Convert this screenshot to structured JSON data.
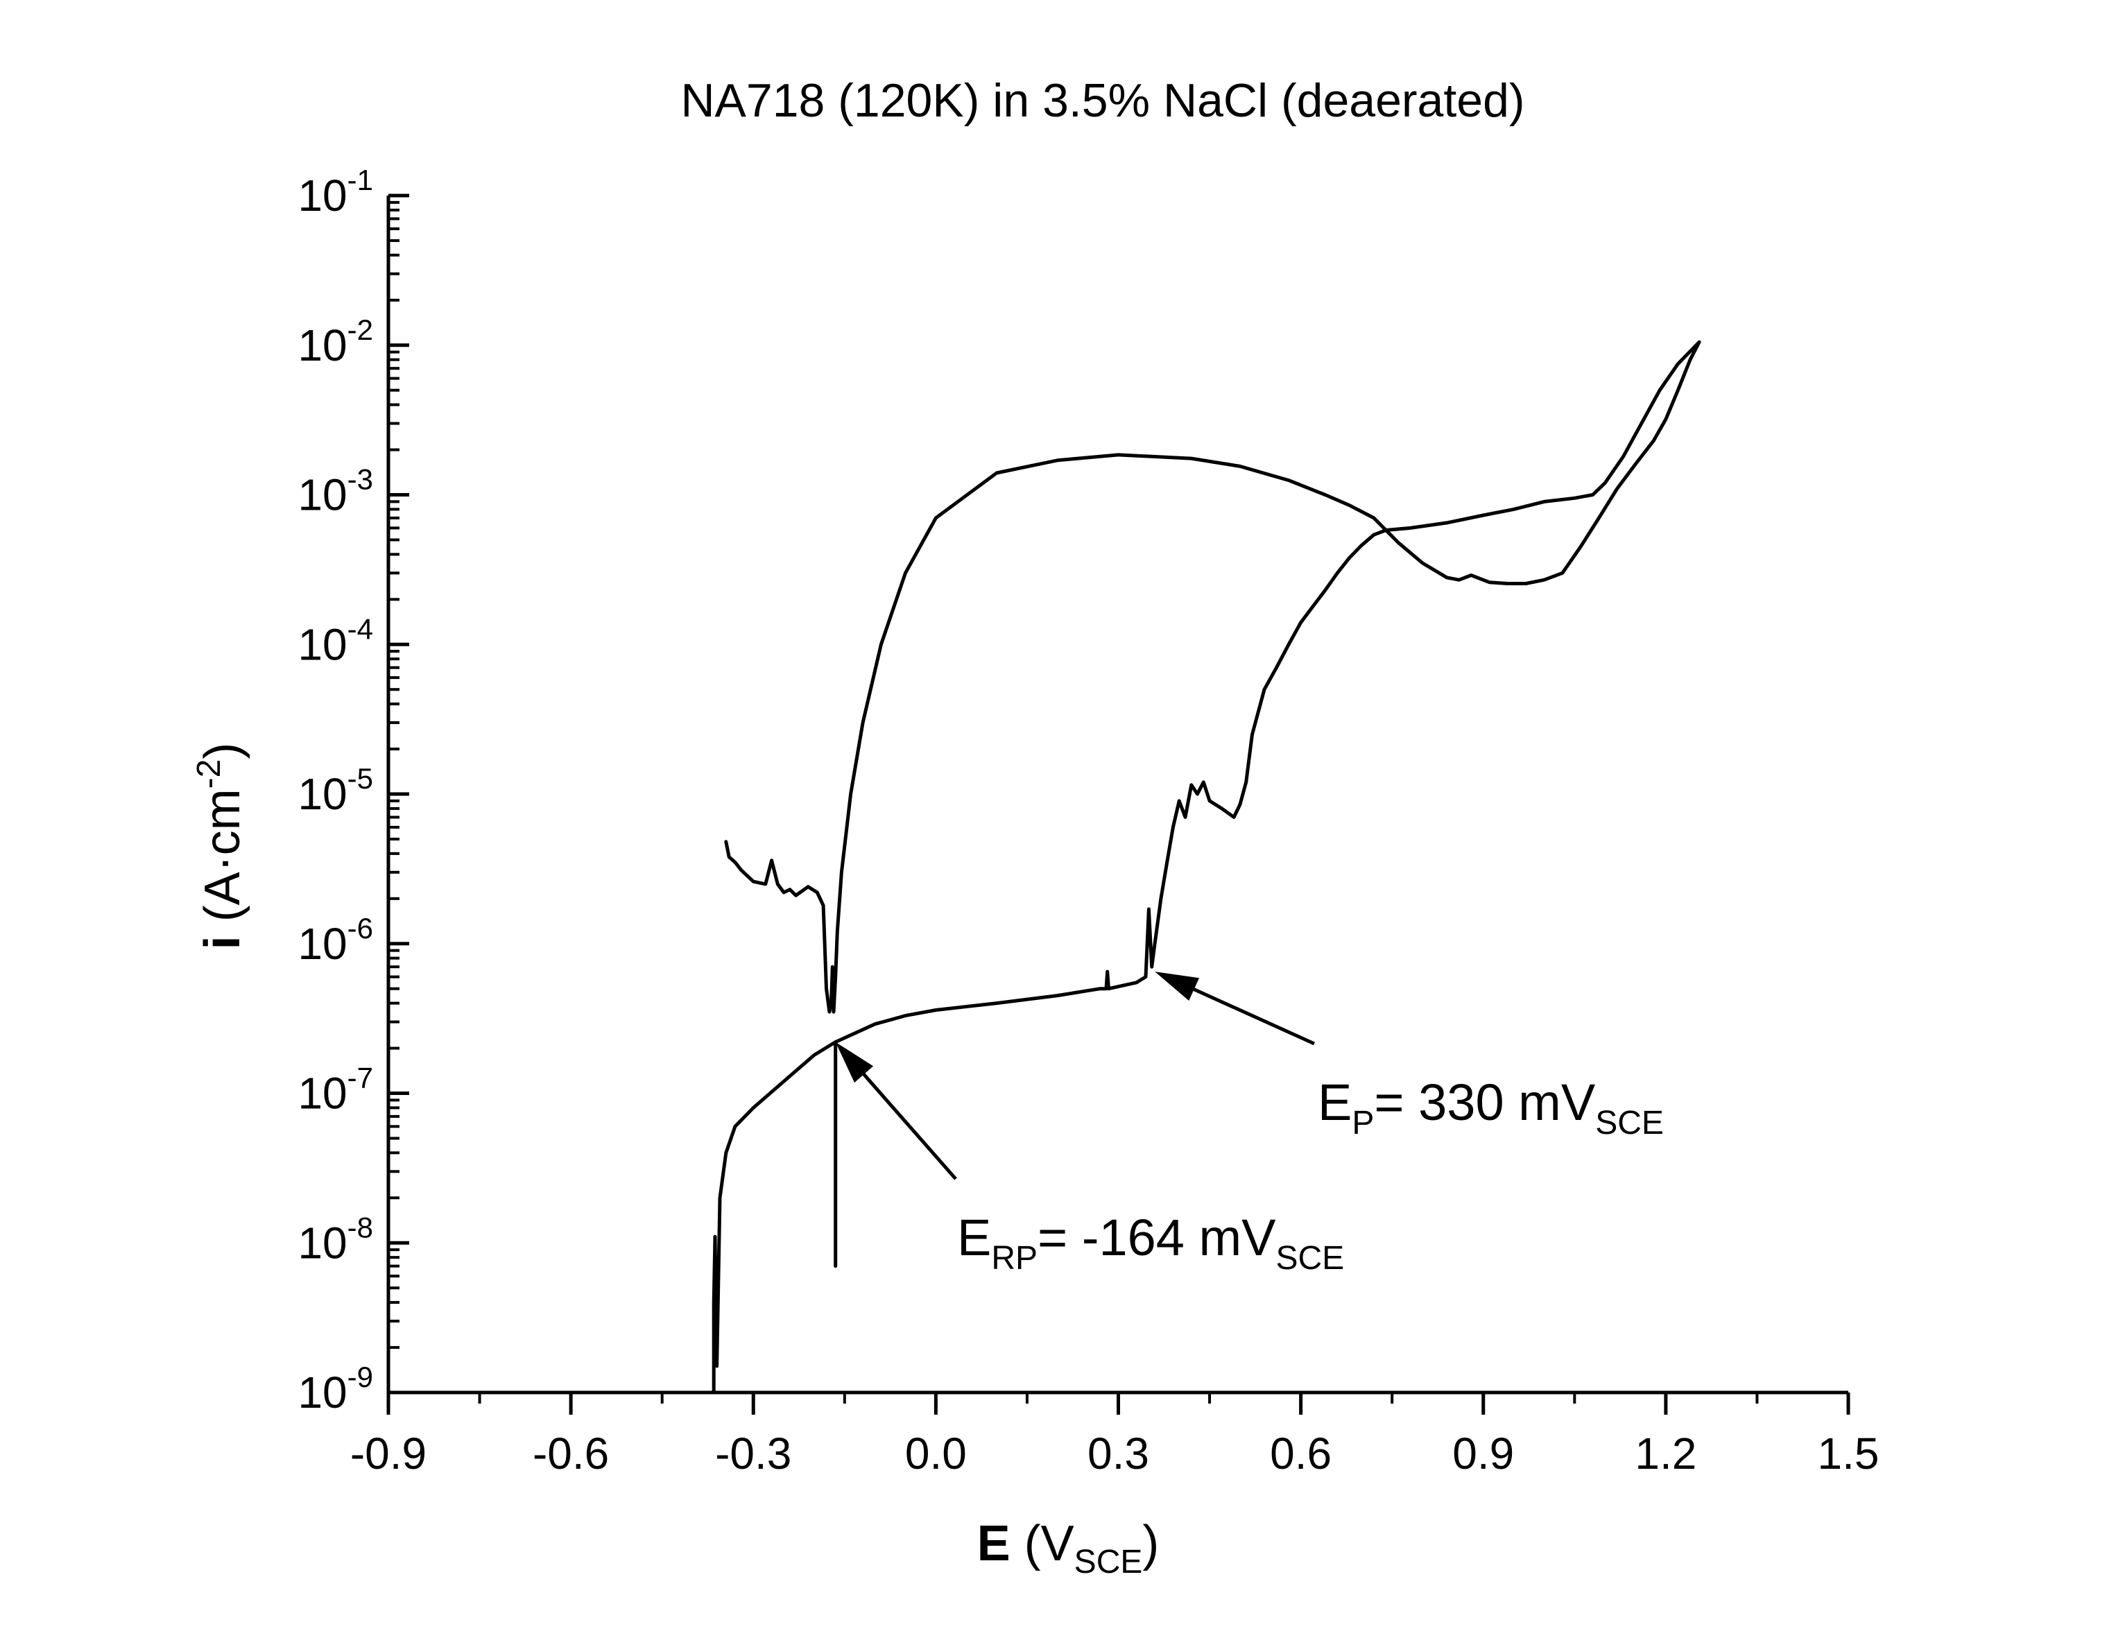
{
  "chart_data": {
    "type": "line",
    "title": "NA718 (120K) in 3.5% NaCl (deaerated)",
    "xlabel": {
      "bold": "E",
      "text": " (V",
      "sub": "SCE",
      "close": ")"
    },
    "ylabel": {
      "bold": "i",
      "text": " (A·cm",
      "sup": "-2",
      "close": ")"
    },
    "xlim": [
      -0.9,
      1.5
    ],
    "ylim_exponent": [
      -9,
      -1
    ],
    "y_scale": "log",
    "x_ticks": [
      -0.9,
      -0.6,
      -0.3,
      0.0,
      0.3,
      0.6,
      0.9,
      1.2,
      1.5
    ],
    "x_tick_labels": [
      "-0.9",
      "-0.6",
      "-0.3",
      "0.0",
      "0.3",
      "0.6",
      "0.9",
      "1.2",
      "1.5"
    ],
    "y_tick_labels": [
      {
        "base": "10",
        "exp": "-9"
      },
      {
        "base": "10",
        "exp": "-8"
      },
      {
        "base": "10",
        "exp": "-7"
      },
      {
        "base": "10",
        "exp": "-6"
      },
      {
        "base": "10",
        "exp": "-5"
      },
      {
        "base": "10",
        "exp": "-4"
      },
      {
        "base": "10",
        "exp": "-3"
      },
      {
        "base": "10",
        "exp": "-2"
      },
      {
        "base": "10",
        "exp": "-1"
      }
    ],
    "series": [
      {
        "segment": "forward",
        "points": [
          [
            -0.365,
            1e-09
          ],
          [
            -0.365,
            4e-09
          ],
          [
            -0.363,
            1.1e-08
          ],
          [
            -0.36,
            1.5e-09
          ],
          [
            -0.355,
            2e-08
          ],
          [
            -0.345,
            4e-08
          ],
          [
            -0.33,
            6e-08
          ],
          [
            -0.3,
            8e-08
          ],
          [
            -0.25,
            1.2e-07
          ],
          [
            -0.2,
            1.8e-07
          ],
          [
            -0.165,
            2.2e-07
          ],
          [
            -0.1,
            2.9e-07
          ],
          [
            -0.05,
            3.3e-07
          ],
          [
            0.0,
            3.6e-07
          ],
          [
            0.1,
            4e-07
          ],
          [
            0.2,
            4.5e-07
          ],
          [
            0.27,
            5e-07
          ],
          [
            0.28,
            5e-07
          ],
          [
            0.282,
            6.5e-07
          ],
          [
            0.284,
            5e-07
          ],
          [
            0.33,
            5.5e-07
          ],
          [
            0.345,
            6e-07
          ],
          [
            0.35,
            1.7e-06
          ],
          [
            0.355,
            7e-07
          ],
          [
            0.36,
            1e-06
          ],
          [
            0.37,
            2e-06
          ],
          [
            0.38,
            3.5e-06
          ],
          [
            0.39,
            6e-06
          ],
          [
            0.4,
            9e-06
          ],
          [
            0.41,
            7e-06
          ],
          [
            0.42,
            1.15e-05
          ],
          [
            0.43,
            1e-05
          ],
          [
            0.44,
            1.2e-05
          ],
          [
            0.45,
            9e-06
          ],
          [
            0.47,
            8e-06
          ],
          [
            0.49,
            7e-06
          ],
          [
            0.5,
            8.5e-06
          ],
          [
            0.51,
            1.2e-05
          ],
          [
            0.52,
            2.5e-05
          ],
          [
            0.54,
            5e-05
          ],
          [
            0.56,
            7e-05
          ],
          [
            0.58,
            0.0001
          ],
          [
            0.6,
            0.00014
          ],
          [
            0.62,
            0.00018
          ],
          [
            0.64,
            0.00023
          ],
          [
            0.66,
            0.0003
          ],
          [
            0.68,
            0.00038
          ],
          [
            0.7,
            0.00046
          ],
          [
            0.72,
            0.00054
          ],
          [
            0.74,
            0.00058
          ],
          [
            0.78,
            0.0006
          ],
          [
            0.84,
            0.00065
          ],
          [
            0.9,
            0.00073
          ],
          [
            0.95,
            0.0008
          ],
          [
            1.0,
            0.0009
          ],
          [
            1.05,
            0.00095
          ],
          [
            1.08,
            0.001
          ],
          [
            1.1,
            0.0012
          ],
          [
            1.13,
            0.0018
          ],
          [
            1.16,
            0.003
          ],
          [
            1.19,
            0.005
          ],
          [
            1.22,
            0.0075
          ],
          [
            1.255,
            0.0105
          ]
        ]
      },
      {
        "segment": "reverse",
        "points": [
          [
            1.255,
            0.0105
          ],
          [
            1.24,
            0.008
          ],
          [
            1.22,
            0.005
          ],
          [
            1.2,
            0.0032
          ],
          [
            1.18,
            0.0023
          ],
          [
            1.15,
            0.0016
          ],
          [
            1.12,
            0.0011
          ],
          [
            1.09,
            0.0007
          ],
          [
            1.06,
            0.00045
          ],
          [
            1.03,
            0.0003
          ],
          [
            1.0,
            0.00027
          ],
          [
            0.97,
            0.000255
          ],
          [
            0.94,
            0.000255
          ],
          [
            0.91,
            0.00026
          ],
          [
            0.88,
            0.00029
          ],
          [
            0.86,
            0.00027
          ],
          [
            0.84,
            0.00028
          ],
          [
            0.8,
            0.00035
          ],
          [
            0.76,
            0.00048
          ],
          [
            0.72,
            0.0007
          ],
          [
            0.68,
            0.00085
          ],
          [
            0.64,
            0.001
          ],
          [
            0.58,
            0.00125
          ],
          [
            0.5,
            0.00155
          ],
          [
            0.42,
            0.00175
          ],
          [
            0.3,
            0.00185
          ],
          [
            0.2,
            0.0017
          ],
          [
            0.1,
            0.0014
          ],
          [
            0.0,
            0.0007
          ],
          [
            -0.05,
            0.0003
          ],
          [
            -0.09,
            0.0001
          ],
          [
            -0.12,
            3e-05
          ],
          [
            -0.14,
            1e-05
          ],
          [
            -0.155,
            3e-06
          ],
          [
            -0.162,
            1.2e-06
          ],
          [
            -0.165,
            6e-07
          ],
          [
            -0.168,
            3.5e-07
          ],
          [
            -0.17,
            7e-07
          ],
          [
            -0.172,
            4e-07
          ],
          [
            -0.175,
            3.5e-07
          ],
          [
            -0.18,
            5e-07
          ],
          [
            -0.185,
            1.8e-06
          ],
          [
            -0.195,
            2.2e-06
          ],
          [
            -0.21,
            2.4e-06
          ],
          [
            -0.23,
            2.1e-06
          ],
          [
            -0.24,
            2.3e-06
          ],
          [
            -0.25,
            2.2e-06
          ],
          [
            -0.26,
            2.5e-06
          ],
          [
            -0.27,
            3.6e-06
          ],
          [
            -0.28,
            2.5e-06
          ],
          [
            -0.3,
            2.6e-06
          ],
          [
            -0.32,
            3.1e-06
          ],
          [
            -0.33,
            3.5e-06
          ],
          [
            -0.34,
            3.8e-06
          ],
          [
            -0.345,
            4.8e-06
          ]
        ]
      },
      {
        "segment": "spike",
        "points": [
          [
            -0.165,
            7e-09
          ],
          [
            -0.165,
            2.2e-07
          ]
        ]
      }
    ],
    "annotations": [
      {
        "main": "E",
        "sub": "P",
        "rest": "= 330 mV",
        "unit_sub": "SCE",
        "target": [
          0.36,
          6.5e-07
        ]
      },
      {
        "main": "E",
        "sub": "RP",
        "rest": "= -164 mV",
        "unit_sub": "SCE",
        "target": [
          -0.165,
          2.2e-07
        ]
      }
    ]
  }
}
